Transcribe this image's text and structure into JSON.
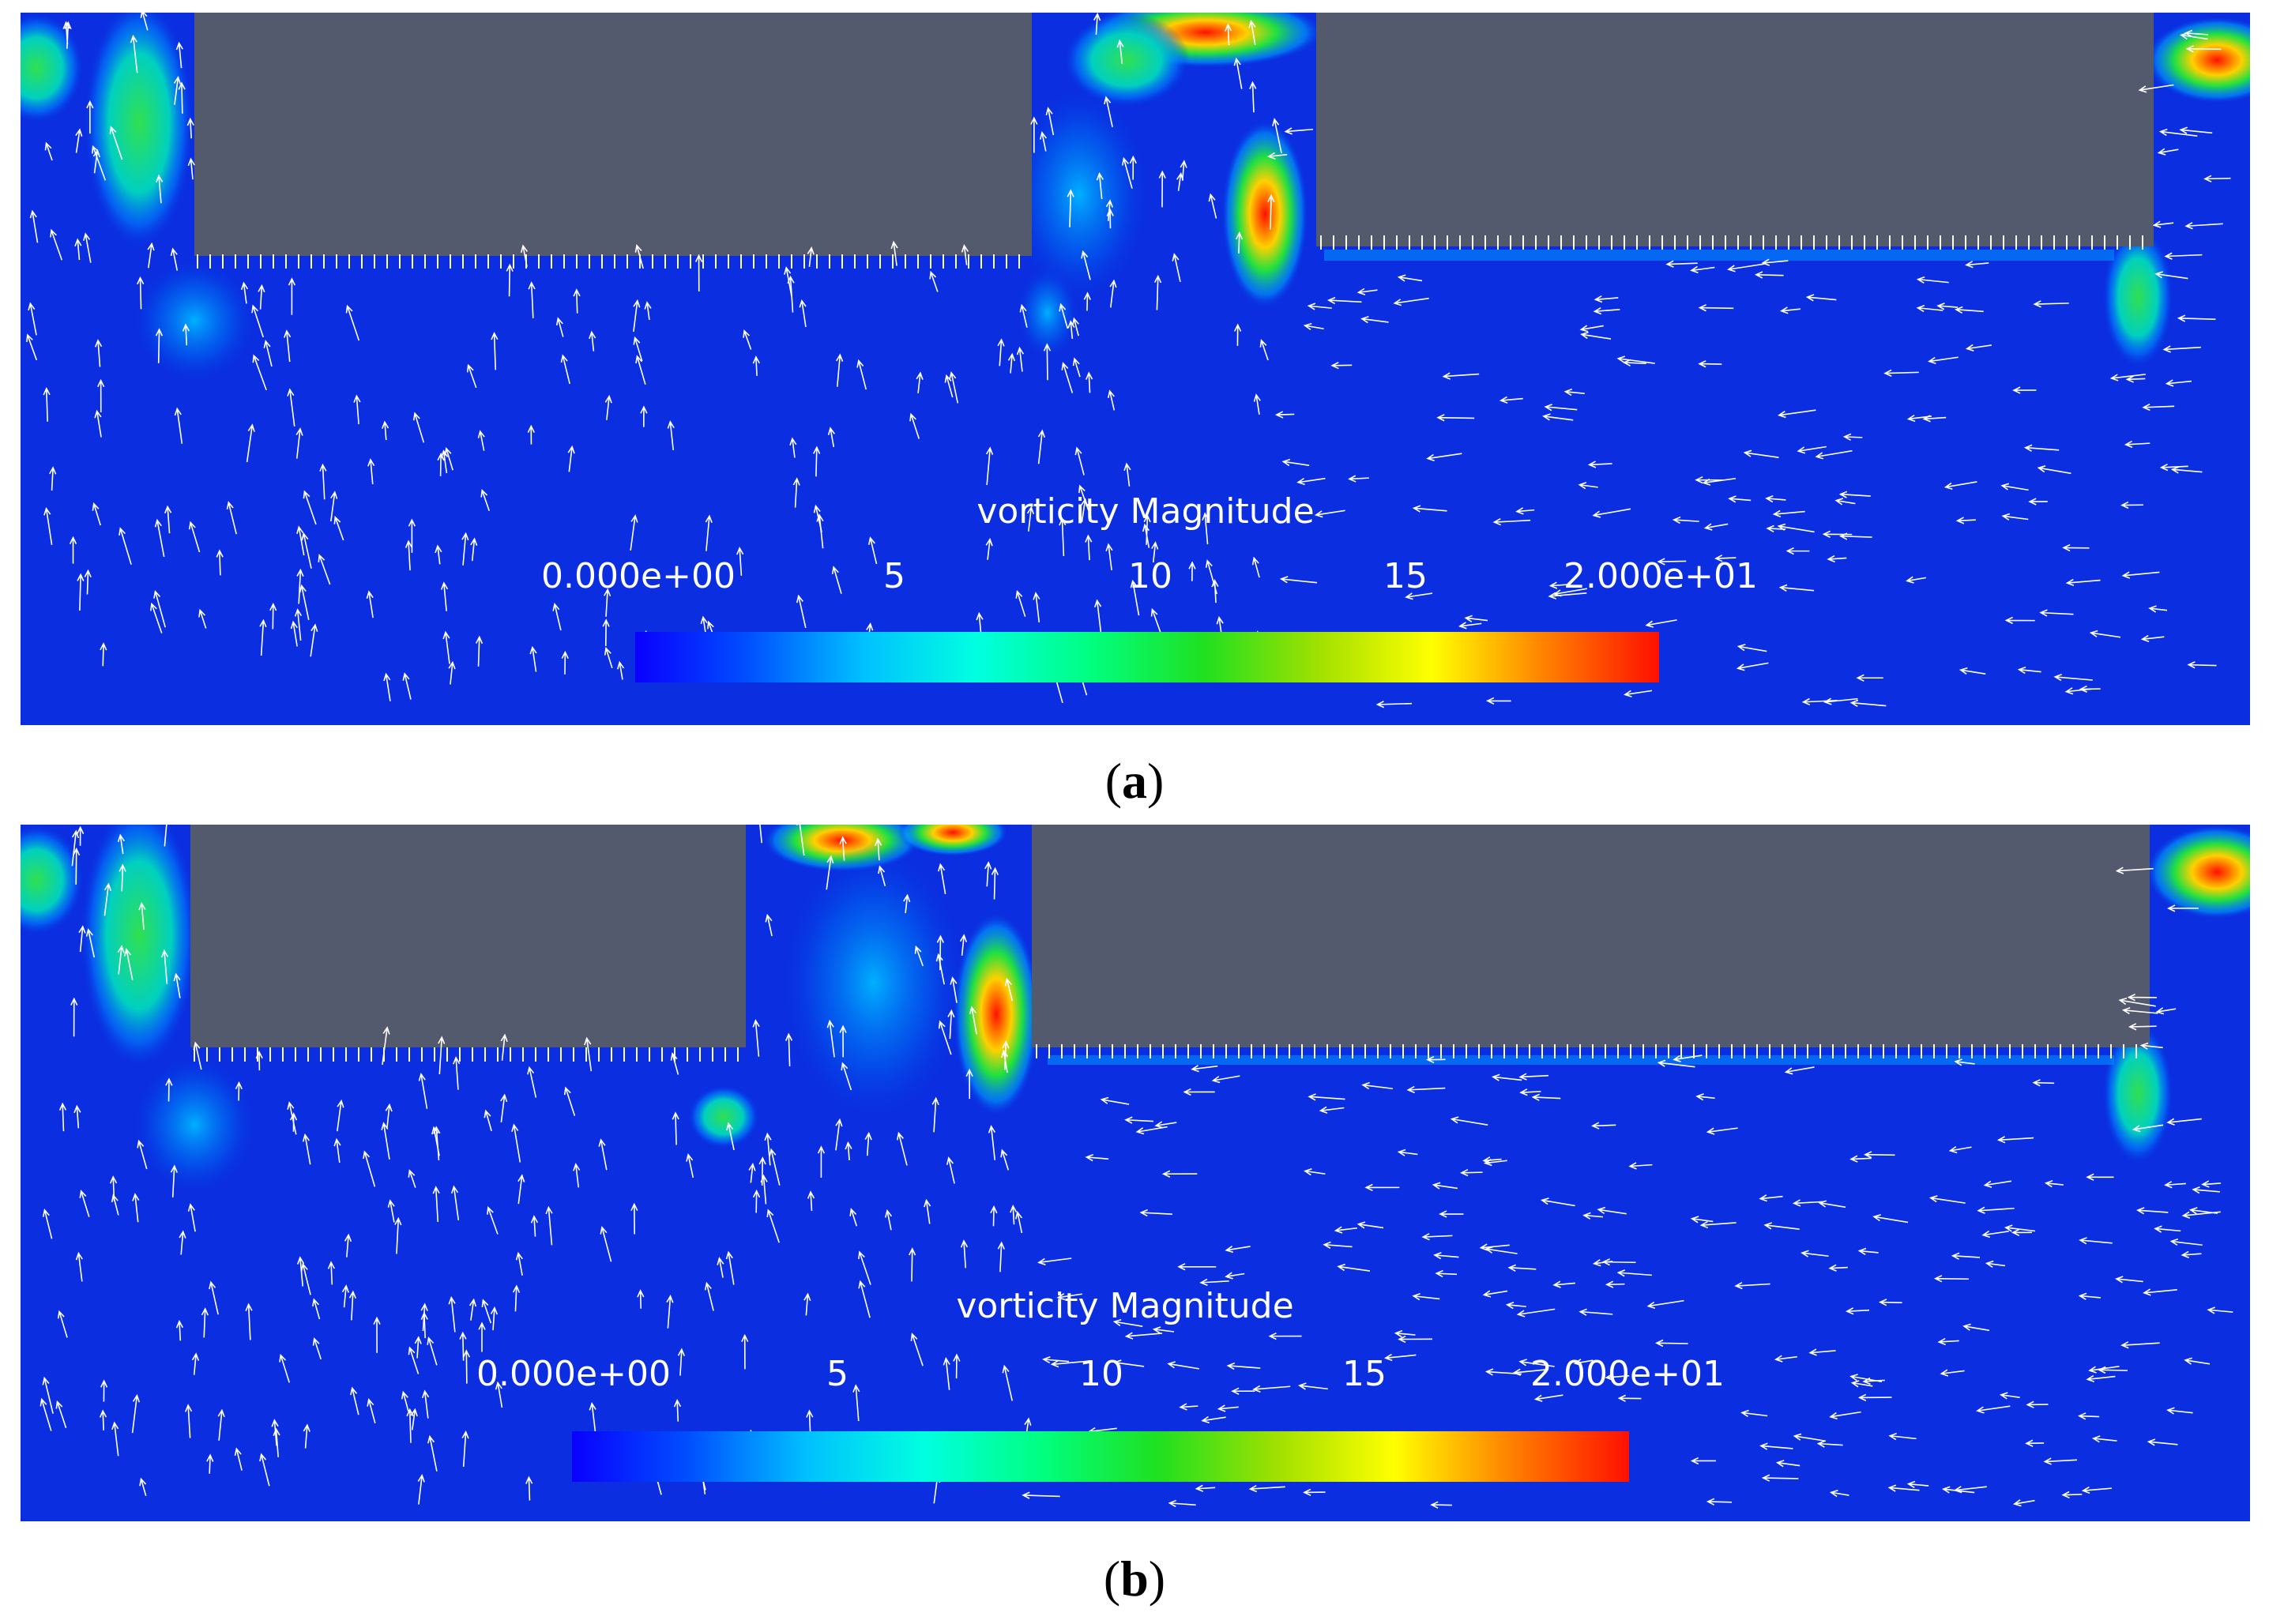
{
  "panels": [
    {
      "id": "a",
      "caption_letter": "a",
      "colorbar": {
        "title": "vorticity Magnitude",
        "ticks": [
          "0.000e+00",
          "5",
          "10",
          "15",
          "2.000e+01"
        ],
        "range": [
          0,
          20
        ]
      }
    },
    {
      "id": "b",
      "caption_letter": "b",
      "colorbar": {
        "title": "vorticity Magnitude",
        "ticks": [
          "0.000e+00",
          "5",
          "10",
          "15",
          "2.000e+01"
        ],
        "range": [
          0,
          20
        ]
      }
    }
  ],
  "colors": {
    "background_field": "#0a2ee0",
    "obstacle": "#545a6e",
    "colormap": [
      "#0a00ff",
      "#0050ff",
      "#00c0ff",
      "#00ffe0",
      "#00ff80",
      "#20e020",
      "#a0e000",
      "#ffff00",
      "#ff8000",
      "#ff1000"
    ]
  }
}
